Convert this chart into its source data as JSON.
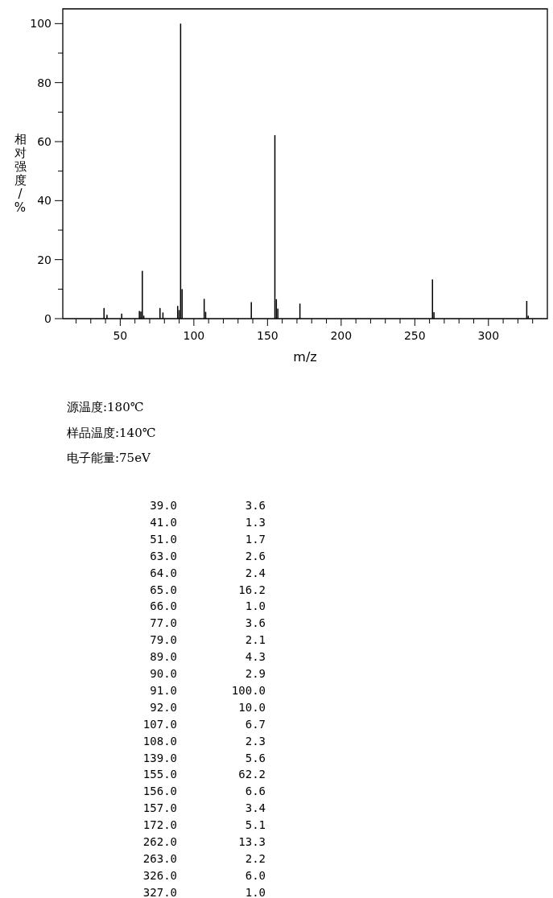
{
  "chart_data": {
    "type": "bar",
    "xlabel": "m/z",
    "ylabel": "相对强度/%",
    "x": [
      39,
      41,
      51,
      63,
      64,
      65,
      66,
      77,
      79,
      89,
      90,
      91,
      92,
      107,
      108,
      139,
      155,
      156,
      157,
      172,
      262,
      263,
      326,
      327
    ],
    "values": [
      3.6,
      1.3,
      1.7,
      2.6,
      2.4,
      16.2,
      1.0,
      3.6,
      2.1,
      4.3,
      2.9,
      100.0,
      10.0,
      6.7,
      2.3,
      5.6,
      62.2,
      6.6,
      3.4,
      5.1,
      13.3,
      2.2,
      6.0,
      1.0
    ],
    "color": "#000000",
    "xlim": [
      11,
      340
    ],
    "ylim": [
      0,
      105
    ],
    "xticks": [
      {
        "value": 20,
        "label": null
      },
      {
        "value": 30,
        "label": null
      },
      {
        "value": 40,
        "label": null
      },
      50,
      {
        "value": 60,
        "label": null
      },
      {
        "value": 70,
        "label": null
      },
      {
        "value": 80,
        "label": null
      },
      {
        "value": 90,
        "label": null
      },
      100,
      {
        "value": 110,
        "label": null
      },
      {
        "value": 120,
        "label": null
      },
      {
        "value": 130,
        "label": null
      },
      {
        "value": 140,
        "label": null
      },
      150,
      {
        "value": 160,
        "label": null
      },
      {
        "value": 170,
        "label": null
      },
      {
        "value": 180,
        "label": null
      },
      {
        "value": 190,
        "label": null
      },
      200,
      {
        "value": 210,
        "label": null
      },
      {
        "value": 220,
        "label": null
      },
      {
        "value": 230,
        "label": null
      },
      {
        "value": 240,
        "label": null
      },
      250,
      {
        "value": 260,
        "label": null
      },
      {
        "value": 270,
        "label": null
      },
      {
        "value": 280,
        "label": null
      },
      {
        "value": 290,
        "label": null
      },
      300,
      {
        "value": 310,
        "label": null
      },
      {
        "value": 320,
        "label": null
      },
      {
        "value": 330,
        "label": null
      }
    ],
    "yticks": [
      0,
      {
        "value": 10,
        "label": null
      },
      20,
      {
        "value": 30,
        "label": null
      },
      40,
      {
        "value": 50,
        "label": null
      },
      60,
      {
        "value": 70,
        "label": null
      },
      80,
      {
        "value": 90,
        "label": null
      },
      100
    ],
    "grid": false,
    "annotations": [
      "源温度:180℃",
      "样品温度:140℃",
      "电子能量:75eV",
      "39.0",
      "3.6",
      "41.0",
      "1.3",
      "51.0",
      "1.7",
      "63.0",
      "2.6",
      "64.0",
      "2.4",
      "65.0",
      "16.2",
      "66.0",
      "1.0",
      "77.0",
      "3.6",
      "79.0",
      "2.1",
      "89.0",
      "4.3",
      "90.0",
      "2.9",
      "91.0",
      "100.0",
      "92.0",
      "10.0",
      "107.0",
      "6.7",
      "108.0",
      "2.3",
      "139.0",
      "5.6",
      "155.0",
      "62.2",
      "156.0",
      "6.6",
      "157.0",
      "3.4",
      "172.0",
      "5.1",
      "262.0",
      "13.3",
      "263.0",
      "2.2",
      "326.0",
      "6.0",
      "327.0",
      "1.0"
    ]
  }
}
